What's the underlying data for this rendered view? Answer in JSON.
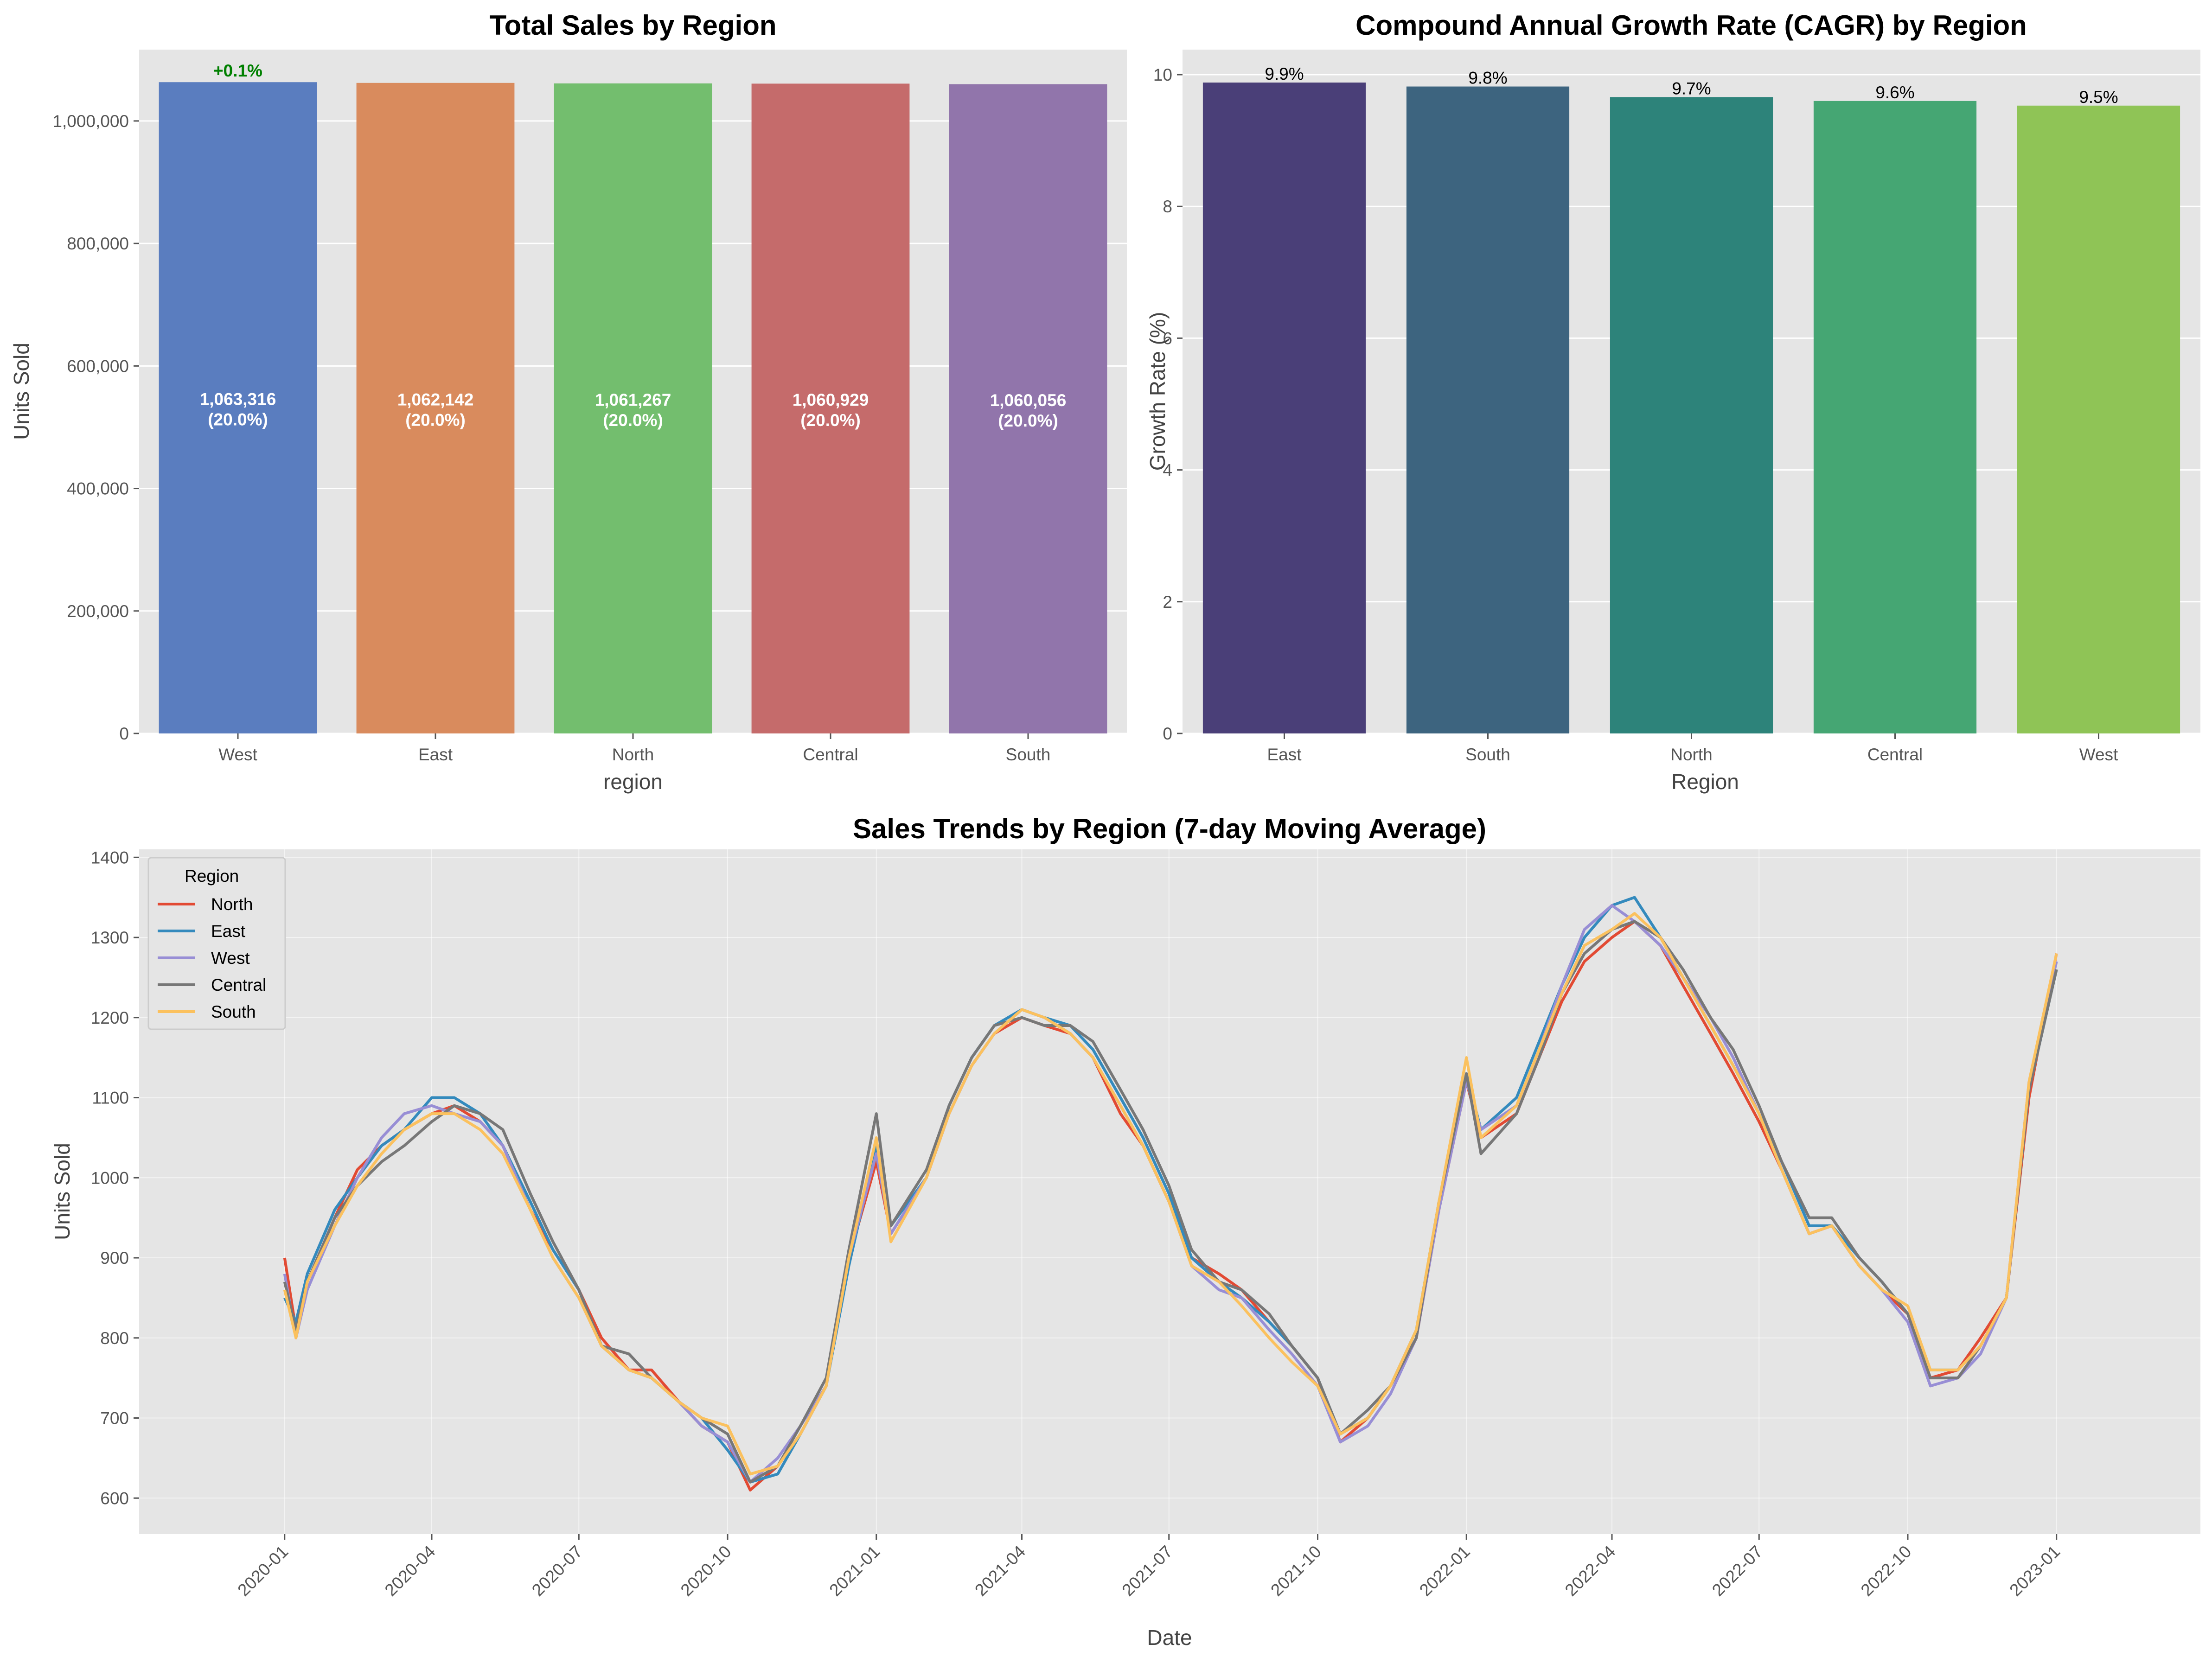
{
  "chart_data": [
    {
      "type": "bar",
      "title": "Total Sales by Region",
      "xlabel": "region",
      "ylabel": "Units Sold",
      "ylim": [
        0,
        1116482
      ],
      "yticks": [
        0,
        200000,
        400000,
        600000,
        800000,
        1000000
      ],
      "ytick_labels": [
        "0",
        "200,000",
        "400,000",
        "600,000",
        "800,000",
        "1,000,000"
      ],
      "categories": [
        "West",
        "East",
        "North",
        "Central",
        "South"
      ],
      "values": [
        1063316,
        1062142,
        1061267,
        1060929,
        1060056
      ],
      "bar_labels": [
        "1,063,316",
        "1,062,142",
        "1,061,267",
        "1,060,929",
        "1,060,056"
      ],
      "share_labels": [
        "(20.0%)",
        "(20.0%)",
        "(20.0%)",
        "(20.0%)",
        "(20.0%)"
      ],
      "annotation": {
        "text": "+0.1%",
        "category": "West",
        "color": "#008000"
      },
      "colors": [
        "#5a7dbf",
        "#d98b5d",
        "#73be6e",
        "#c56b6b",
        "#9175ab"
      ],
      "grid": true,
      "background": "#e5e5e5"
    },
    {
      "type": "bar",
      "title": "Compound Annual Growth Rate (CAGR) by Region",
      "xlabel": "Region",
      "ylabel": "Growth Rate (%)",
      "ylim": [
        0,
        10.38
      ],
      "yticks": [
        0,
        2,
        4,
        6,
        8,
        10
      ],
      "ytick_labels": [
        "0",
        "2",
        "4",
        "6",
        "8",
        "10"
      ],
      "categories": [
        "East",
        "South",
        "North",
        "Central",
        "West"
      ],
      "values": [
        9.88,
        9.82,
        9.66,
        9.6,
        9.53
      ],
      "bar_labels": [
        "9.9%",
        "9.8%",
        "9.7%",
        "9.6%",
        "9.5%"
      ],
      "colors": [
        "#4a3f78",
        "#3d647f",
        "#2d837a",
        "#45a673",
        "#8fc456"
      ],
      "grid": true,
      "background": "#e5e5e5"
    },
    {
      "type": "line",
      "title": "Sales Trends by Region (7-day Moving Average)",
      "xlabel": "Date",
      "ylabel": "Units Sold",
      "ylim": [
        555,
        1410
      ],
      "yticks": [
        600,
        700,
        800,
        900,
        1000,
        1100,
        1200,
        1300,
        1400
      ],
      "ytick_labels": [
        "600",
        "700",
        "800",
        "900",
        "1000",
        "1100",
        "1200",
        "1300",
        "1400"
      ],
      "xlim": [
        "2019-10-03",
        "2023-03-31"
      ],
      "xticks": [
        "2020-01-01",
        "2020-04-01",
        "2020-07-01",
        "2020-10-01",
        "2021-01-01",
        "2021-04-01",
        "2021-07-01",
        "2021-10-01",
        "2022-01-01",
        "2022-04-01",
        "2022-07-01",
        "2022-10-01",
        "2023-01-01"
      ],
      "xtick_labels": [
        "2020-01",
        "2020-04",
        "2020-07",
        "2020-10",
        "2021-01",
        "2021-04",
        "2021-07",
        "2021-10",
        "2022-01",
        "2022-04",
        "2022-07",
        "2022-10",
        "2023-01"
      ],
      "legend_title": "Region",
      "legend_position": "upper-left",
      "grid": true,
      "background": "#e5e5e5",
      "x": [
        "2020-01-01",
        "2020-01-08",
        "2020-01-15",
        "2020-02-01",
        "2020-02-15",
        "2020-03-01",
        "2020-03-15",
        "2020-04-01",
        "2020-04-15",
        "2020-05-01",
        "2020-05-15",
        "2020-06-01",
        "2020-06-15",
        "2020-07-01",
        "2020-07-15",
        "2020-08-01",
        "2020-08-15",
        "2020-09-01",
        "2020-09-15",
        "2020-10-01",
        "2020-10-15",
        "2020-11-01",
        "2020-11-15",
        "2020-12-01",
        "2020-12-15",
        "2021-01-01",
        "2021-01-10",
        "2021-02-01",
        "2021-02-15",
        "2021-03-01",
        "2021-03-15",
        "2021-04-01",
        "2021-04-15",
        "2021-05-01",
        "2021-05-15",
        "2021-06-01",
        "2021-06-15",
        "2021-07-01",
        "2021-07-15",
        "2021-08-01",
        "2021-08-15",
        "2021-09-01",
        "2021-09-15",
        "2021-10-01",
        "2021-10-15",
        "2021-11-01",
        "2021-11-15",
        "2021-12-01",
        "2021-12-15",
        "2022-01-01",
        "2022-01-10",
        "2022-02-01",
        "2022-02-15",
        "2022-03-01",
        "2022-03-15",
        "2022-04-01",
        "2022-04-15",
        "2022-05-01",
        "2022-05-15",
        "2022-06-01",
        "2022-06-15",
        "2022-07-01",
        "2022-07-15",
        "2022-08-01",
        "2022-08-15",
        "2022-09-01",
        "2022-09-15",
        "2022-10-01",
        "2022-10-15",
        "2022-11-01",
        "2022-11-15",
        "2022-12-01",
        "2022-12-15",
        "2023-01-01"
      ],
      "series": [
        {
          "name": "North",
          "color": "#e24a33",
          "values": [
            900,
            810,
            870,
            950,
            1010,
            1040,
            1060,
            1080,
            1090,
            1070,
            1040,
            960,
            910,
            860,
            800,
            760,
            760,
            720,
            690,
            670,
            610,
            640,
            680,
            740,
            900,
            1020,
            930,
            1000,
            1080,
            1140,
            1180,
            1200,
            1190,
            1180,
            1150,
            1080,
            1040,
            970,
            900,
            880,
            860,
            820,
            790,
            750,
            670,
            700,
            740,
            800,
            960,
            1120,
            1050,
            1080,
            1150,
            1220,
            1270,
            1300,
            1320,
            1290,
            1240,
            1180,
            1130,
            1070,
            1010,
            930,
            940,
            890,
            860,
            830,
            750,
            760,
            800,
            850,
            1100,
            1280
          ]
        },
        {
          "name": "East",
          "color": "#348abd",
          "values": [
            850,
            820,
            880,
            960,
            1000,
            1040,
            1060,
            1100,
            1100,
            1080,
            1040,
            970,
            910,
            860,
            790,
            760,
            750,
            720,
            700,
            660,
            620,
            630,
            680,
            740,
            890,
            1040,
            940,
            1000,
            1090,
            1150,
            1190,
            1210,
            1200,
            1190,
            1160,
            1100,
            1050,
            980,
            900,
            870,
            850,
            820,
            790,
            750,
            680,
            700,
            740,
            810,
            970,
            1130,
            1060,
            1100,
            1170,
            1240,
            1300,
            1340,
            1350,
            1300,
            1250,
            1190,
            1140,
            1080,
            1020,
            940,
            940,
            900,
            870,
            830,
            760,
            760,
            790,
            850,
            1110,
            1260
          ]
        },
        {
          "name": "West",
          "color": "#988ed5",
          "values": [
            880,
            800,
            860,
            940,
            1000,
            1050,
            1080,
            1090,
            1080,
            1070,
            1040,
            960,
            900,
            850,
            790,
            760,
            750,
            720,
            690,
            670,
            620,
            650,
            690,
            740,
            900,
            1030,
            930,
            1000,
            1080,
            1140,
            1180,
            1210,
            1200,
            1180,
            1150,
            1090,
            1040,
            970,
            890,
            860,
            850,
            810,
            780,
            740,
            670,
            690,
            730,
            800,
            960,
            1120,
            1060,
            1090,
            1160,
            1240,
            1310,
            1340,
            1320,
            1290,
            1250,
            1200,
            1150,
            1080,
            1010,
            930,
            940,
            890,
            860,
            820,
            740,
            750,
            780,
            850,
            1120,
            1270
          ]
        },
        {
          "name": "Central",
          "color": "#777777",
          "values": [
            870,
            810,
            870,
            950,
            990,
            1020,
            1040,
            1070,
            1090,
            1080,
            1060,
            980,
            920,
            860,
            790,
            780,
            750,
            720,
            700,
            680,
            620,
            640,
            690,
            750,
            910,
            1080,
            940,
            1010,
            1090,
            1150,
            1190,
            1200,
            1190,
            1190,
            1170,
            1110,
            1060,
            990,
            910,
            870,
            860,
            830,
            790,
            750,
            680,
            710,
            740,
            800,
            970,
            1130,
            1030,
            1080,
            1150,
            1230,
            1280,
            1310,
            1320,
            1300,
            1260,
            1200,
            1160,
            1090,
            1020,
            950,
            950,
            900,
            870,
            830,
            750,
            750,
            790,
            850,
            1110,
            1260
          ]
        },
        {
          "name": "South",
          "color": "#fbc15e",
          "values": [
            860,
            800,
            870,
            940,
            990,
            1030,
            1060,
            1080,
            1080,
            1060,
            1030,
            960,
            900,
            850,
            790,
            760,
            750,
            720,
            700,
            690,
            630,
            640,
            680,
            740,
            900,
            1050,
            920,
            1000,
            1080,
            1140,
            1180,
            1210,
            1200,
            1180,
            1150,
            1090,
            1040,
            970,
            890,
            870,
            840,
            800,
            770,
            740,
            680,
            700,
            740,
            810,
            970,
            1150,
            1050,
            1090,
            1160,
            1230,
            1290,
            1310,
            1330,
            1300,
            1250,
            1190,
            1140,
            1080,
            1010,
            930,
            940,
            890,
            860,
            840,
            760,
            760,
            790,
            850,
            1120,
            1280
          ]
        }
      ]
    }
  ]
}
